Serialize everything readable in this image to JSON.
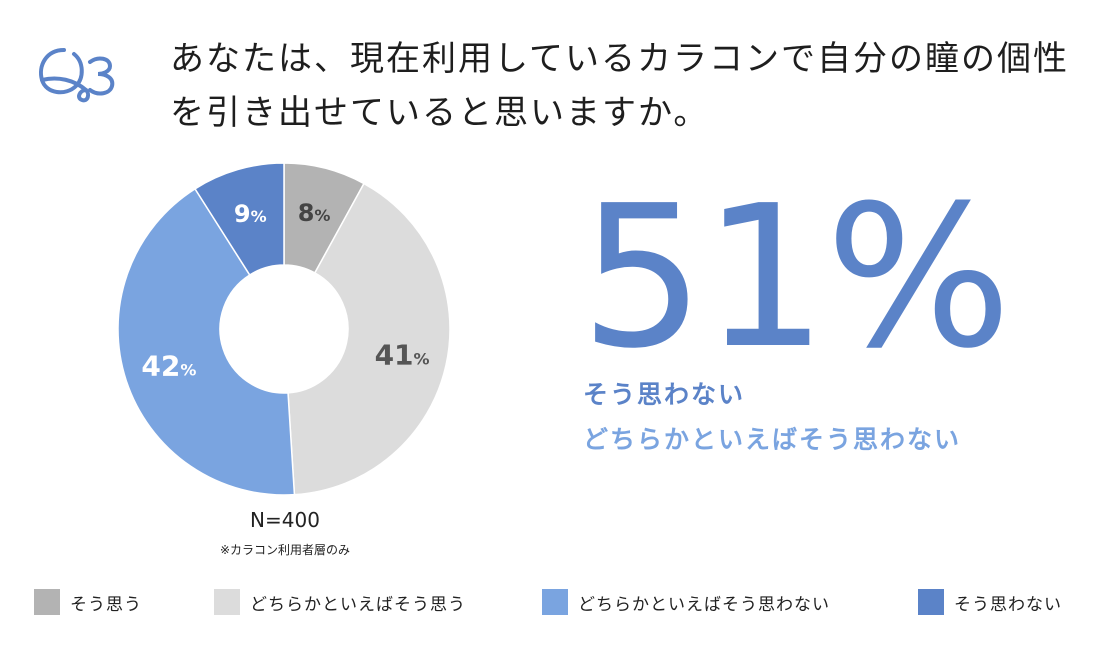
{
  "question": "あなたは、現在利用しているカラコンで自分の瞳の個性を引き出せていると思いますか。",
  "q_mark": "Q3",
  "n_label": "N=400",
  "note": "※カラコン利用者層のみ",
  "highlight": {
    "value": "51%",
    "line1": "そう思わない",
    "line2": "どちらかといえばそう思わない"
  },
  "colors": {
    "accent": "#5b83c8",
    "accent_light": "#7aa4e0"
  },
  "chart_data": {
    "type": "pie",
    "donut": true,
    "start": "top, clockwise",
    "slices": [
      {
        "label": "そう思う",
        "value": 8,
        "display": "8%",
        "color": "#b3b3b3"
      },
      {
        "label": "どちらかといえばそう思う",
        "value": 41,
        "display": "41%",
        "color": "#dcdcdc"
      },
      {
        "label": "どちらかといえばそう思わない",
        "value": 42,
        "display": "42%",
        "color": "#7aa4e0"
      },
      {
        "label": "そう思わない",
        "value": 9,
        "display": "9%",
        "color": "#5b83c8"
      }
    ],
    "legend_position": "bottom"
  }
}
